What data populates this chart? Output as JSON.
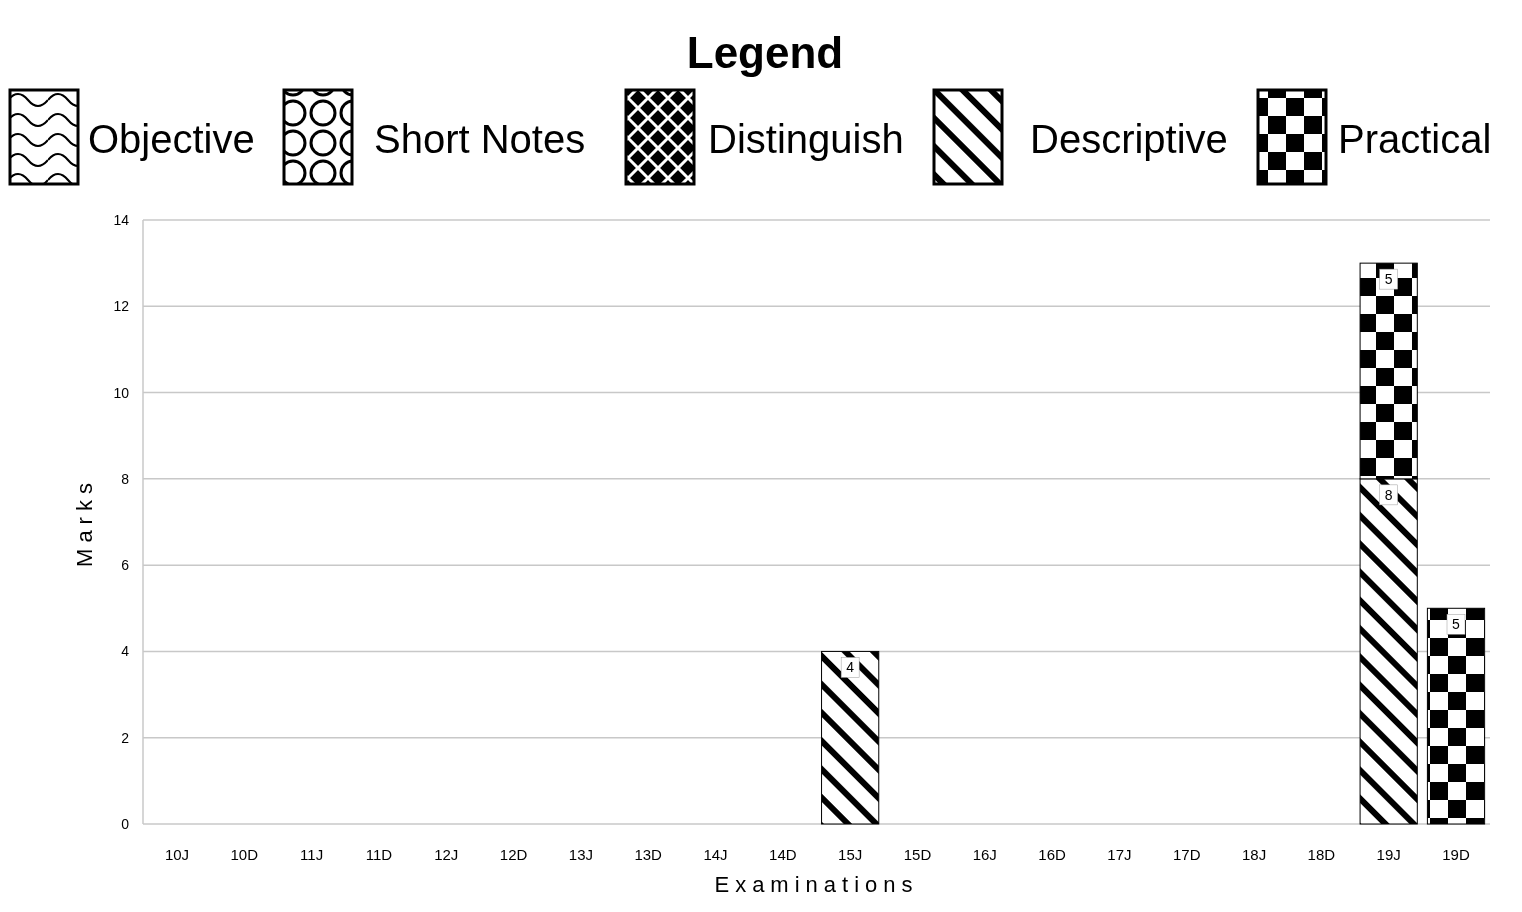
{
  "chart_data": {
    "type": "bar",
    "stacked": true,
    "legend_title": "Legend",
    "xlabel": "Examinations",
    "ylabel": "Marks",
    "categories": [
      "10J",
      "10D",
      "11J",
      "11D",
      "12J",
      "12D",
      "13J",
      "13D",
      "14J",
      "14D",
      "15J",
      "15D",
      "16J",
      "16D",
      "17J",
      "17D",
      "18J",
      "18D",
      "19J",
      "19D"
    ],
    "series": [
      {
        "name": "Objective",
        "color": "#000000",
        "values": [
          null,
          null,
          null,
          null,
          null,
          null,
          null,
          null,
          null,
          null,
          null,
          null,
          null,
          null,
          null,
          null,
          null,
          null,
          null,
          null
        ]
      },
      {
        "name": "Short Notes",
        "color": "#000000",
        "values": [
          null,
          null,
          null,
          null,
          null,
          null,
          null,
          null,
          null,
          null,
          null,
          null,
          null,
          null,
          null,
          null,
          null,
          null,
          null,
          null
        ]
      },
      {
        "name": "Distinguish",
        "color": "#000000",
        "values": [
          null,
          null,
          null,
          null,
          null,
          null,
          null,
          null,
          null,
          null,
          null,
          null,
          null,
          null,
          null,
          null,
          null,
          null,
          null,
          null
        ]
      },
      {
        "name": "Descriptive",
        "color": "#000000",
        "values": [
          null,
          null,
          null,
          null,
          null,
          null,
          null,
          null,
          null,
          null,
          4,
          null,
          null,
          null,
          null,
          null,
          null,
          null,
          8,
          null
        ]
      },
      {
        "name": "Practical",
        "color": "#000000",
        "values": [
          null,
          null,
          null,
          null,
          null,
          null,
          null,
          null,
          null,
          null,
          null,
          null,
          null,
          null,
          null,
          null,
          null,
          null,
          5,
          5
        ]
      }
    ],
    "ylim": [
      0,
      14
    ],
    "yticks": [
      0,
      2,
      4,
      6,
      8,
      10,
      12,
      14
    ],
    "grid": "y",
    "legend": "top",
    "data_labels": true
  }
}
